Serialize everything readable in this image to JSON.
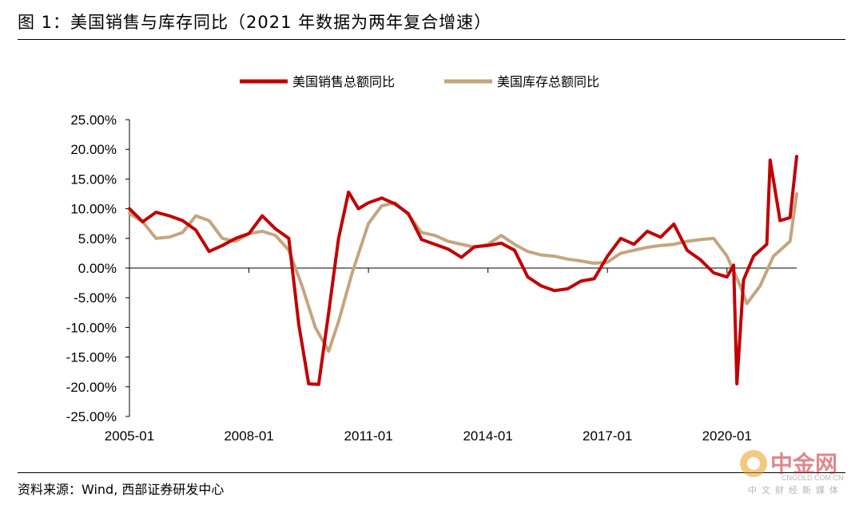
{
  "figure": {
    "title": "图 1：美国销售与库存同比（2021 年数据为两年复合增速）",
    "source": "资料来源：Wind, 西部证券研发中心"
  },
  "watermark": {
    "logo_text": "中金网",
    "url": "CNGOLD.COM.CN",
    "subtitle": "中文财经新媒体"
  },
  "colors": {
    "sales": "#c00000",
    "inventory": "#c4a57f"
  },
  "chart_data": {
    "type": "line",
    "title": "",
    "xlabel": "",
    "ylabel": "",
    "x_range": [
      "2005-01",
      "2021-10"
    ],
    "ylim": [
      -0.25,
      0.25
    ],
    "y_ticks": [
      "25.00%",
      "20.00%",
      "15.00%",
      "10.00%",
      "5.00%",
      "0.00%",
      "-5.00%",
      "-10.00%",
      "-15.00%",
      "-20.00%",
      "-25.00%"
    ],
    "x_ticks": [
      "2005-01",
      "2008-01",
      "2011-01",
      "2014-01",
      "2017-01",
      "2020-01"
    ],
    "legend": "top-center",
    "grid": false,
    "series": [
      {
        "name": "美国销售总额同比",
        "color": "#c00000",
        "points": [
          [
            "2005-01",
            0.1
          ],
          [
            "2005-05",
            0.078
          ],
          [
            "2005-09",
            0.094
          ],
          [
            "2006-01",
            0.088
          ],
          [
            "2006-05",
            0.08
          ],
          [
            "2006-09",
            0.064
          ],
          [
            "2007-01",
            0.028
          ],
          [
            "2007-05",
            0.038
          ],
          [
            "2007-09",
            0.05
          ],
          [
            "2008-01",
            0.058
          ],
          [
            "2008-05",
            0.088
          ],
          [
            "2008-09",
            0.066
          ],
          [
            "2009-01",
            0.05
          ],
          [
            "2009-04",
            -0.095
          ],
          [
            "2009-07",
            -0.195
          ],
          [
            "2009-10",
            -0.196
          ],
          [
            "2010-01",
            -0.075
          ],
          [
            "2010-04",
            0.05
          ],
          [
            "2010-07",
            0.128
          ],
          [
            "2010-10",
            0.1
          ],
          [
            "2011-01",
            0.11
          ],
          [
            "2011-05",
            0.118
          ],
          [
            "2011-09",
            0.108
          ],
          [
            "2012-01",
            0.092
          ],
          [
            "2012-05",
            0.048
          ],
          [
            "2012-09",
            0.04
          ],
          [
            "2013-01",
            0.032
          ],
          [
            "2013-05",
            0.018
          ],
          [
            "2013-09",
            0.036
          ],
          [
            "2014-01",
            0.038
          ],
          [
            "2014-05",
            0.042
          ],
          [
            "2014-09",
            0.03
          ],
          [
            "2015-01",
            -0.015
          ],
          [
            "2015-05",
            -0.03
          ],
          [
            "2015-09",
            -0.038
          ],
          [
            "2016-01",
            -0.035
          ],
          [
            "2016-05",
            -0.022
          ],
          [
            "2016-09",
            -0.018
          ],
          [
            "2017-01",
            0.02
          ],
          [
            "2017-05",
            0.05
          ],
          [
            "2017-09",
            0.04
          ],
          [
            "2018-01",
            0.062
          ],
          [
            "2018-05",
            0.052
          ],
          [
            "2018-09",
            0.074
          ],
          [
            "2019-01",
            0.03
          ],
          [
            "2019-05",
            0.014
          ],
          [
            "2019-09",
            -0.008
          ],
          [
            "2020-01",
            -0.015
          ],
          [
            "2020-03",
            0.005
          ],
          [
            "2020-04",
            -0.195
          ],
          [
            "2020-06",
            -0.02
          ],
          [
            "2020-09",
            0.02
          ],
          [
            "2021-01",
            0.04
          ],
          [
            "2021-02",
            0.182
          ],
          [
            "2021-05",
            0.08
          ],
          [
            "2021-08",
            0.085
          ],
          [
            "2021-10",
            0.188
          ]
        ]
      },
      {
        "name": "美国库存总额同比",
        "color": "#c4a57f",
        "points": [
          [
            "2005-01",
            0.092
          ],
          [
            "2005-05",
            0.078
          ],
          [
            "2005-09",
            0.05
          ],
          [
            "2006-01",
            0.052
          ],
          [
            "2006-05",
            0.06
          ],
          [
            "2006-09",
            0.088
          ],
          [
            "2007-01",
            0.08
          ],
          [
            "2007-05",
            0.05
          ],
          [
            "2007-09",
            0.045
          ],
          [
            "2008-01",
            0.058
          ],
          [
            "2008-05",
            0.062
          ],
          [
            "2008-09",
            0.055
          ],
          [
            "2009-01",
            0.03
          ],
          [
            "2009-05",
            -0.03
          ],
          [
            "2009-09",
            -0.1
          ],
          [
            "2010-01",
            -0.14
          ],
          [
            "2010-04",
            -0.09
          ],
          [
            "2010-08",
            -0.01
          ],
          [
            "2011-01",
            0.075
          ],
          [
            "2011-05",
            0.105
          ],
          [
            "2011-09",
            0.11
          ],
          [
            "2012-01",
            0.09
          ],
          [
            "2012-05",
            0.06
          ],
          [
            "2012-09",
            0.055
          ],
          [
            "2013-01",
            0.045
          ],
          [
            "2013-05",
            0.04
          ],
          [
            "2013-09",
            0.035
          ],
          [
            "2014-01",
            0.04
          ],
          [
            "2014-05",
            0.055
          ],
          [
            "2014-09",
            0.04
          ],
          [
            "2015-01",
            0.028
          ],
          [
            "2015-05",
            0.022
          ],
          [
            "2015-09",
            0.02
          ],
          [
            "2016-01",
            0.015
          ],
          [
            "2016-05",
            0.012
          ],
          [
            "2016-09",
            0.008
          ],
          [
            "2017-01",
            0.01
          ],
          [
            "2017-05",
            0.025
          ],
          [
            "2017-09",
            0.03
          ],
          [
            "2018-01",
            0.035
          ],
          [
            "2018-05",
            0.038
          ],
          [
            "2018-09",
            0.04
          ],
          [
            "2019-01",
            0.045
          ],
          [
            "2019-05",
            0.048
          ],
          [
            "2019-09",
            0.05
          ],
          [
            "2020-01",
            0.02
          ],
          [
            "2020-05",
            -0.03
          ],
          [
            "2020-07",
            -0.06
          ],
          [
            "2020-11",
            -0.03
          ],
          [
            "2021-03",
            0.02
          ],
          [
            "2021-06",
            0.035
          ],
          [
            "2021-08",
            0.045
          ],
          [
            "2021-10",
            0.125
          ]
        ]
      }
    ]
  }
}
